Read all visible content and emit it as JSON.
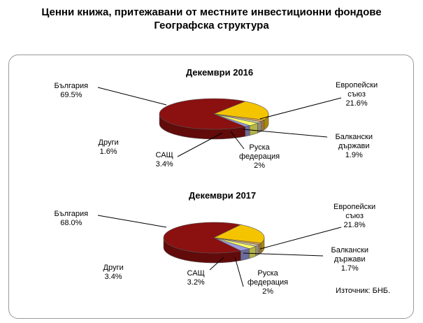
{
  "title": {
    "line1": "Ценни книжа, притежавани от местните инвестиционни фондове",
    "line2": "Географска структура"
  },
  "source": "Източник: БНБ.",
  "colors": {
    "България": "#8b1010",
    "Европейски съюз": "#f5c400",
    "Балкански държави": "#e8a34a",
    "Руска федерация": "#ccc6a8",
    "САЩ": "#ffff66",
    "Други": "#9a9ae0"
  },
  "chart_data": [
    {
      "type": "pie",
      "subtitle": "Декември 2016",
      "slices": [
        {
          "name": "България",
          "value": 69.5,
          "name_text": "България",
          "value_text": "69.5%"
        },
        {
          "name": "Европейски съюз",
          "value": 21.6,
          "name_text": "Европейски\nсъюз",
          "value_text": "21.6%"
        },
        {
          "name": "Балкански държави",
          "value": 1.9,
          "name_text": "Балкански\nдържави",
          "value_text": "1.9%"
        },
        {
          "name": "Руска федерация",
          "value": 2.0,
          "name_text": "Руска\nфедерация",
          "value_text": "2%"
        },
        {
          "name": "САЩ",
          "value": 3.4,
          "name_text": "САЩ",
          "value_text": "3.4%"
        },
        {
          "name": "Други",
          "value": 1.6,
          "name_text": "Други",
          "value_text": "1.6%"
        }
      ]
    },
    {
      "type": "pie",
      "subtitle": "Декември 2017",
      "slices": [
        {
          "name": "България",
          "value": 68.0,
          "name_text": "България",
          "value_text": "68.0%"
        },
        {
          "name": "Европейски съюз",
          "value": 21.8,
          "name_text": "Европейски\nсъюз",
          "value_text": "21.8%"
        },
        {
          "name": "Балкански държави",
          "value": 1.7,
          "name_text": "Балкански\nдържави",
          "value_text": "1.7%"
        },
        {
          "name": "Руска федерация",
          "value": 2.0,
          "name_text": "Руска\nфедерация",
          "value_text": "2%"
        },
        {
          "name": "САЩ",
          "value": 3.2,
          "name_text": "САЩ",
          "value_text": "3.2%"
        },
        {
          "name": "Други",
          "value": 3.4,
          "name_text": "Други",
          "value_text": "3.4%"
        }
      ]
    }
  ]
}
